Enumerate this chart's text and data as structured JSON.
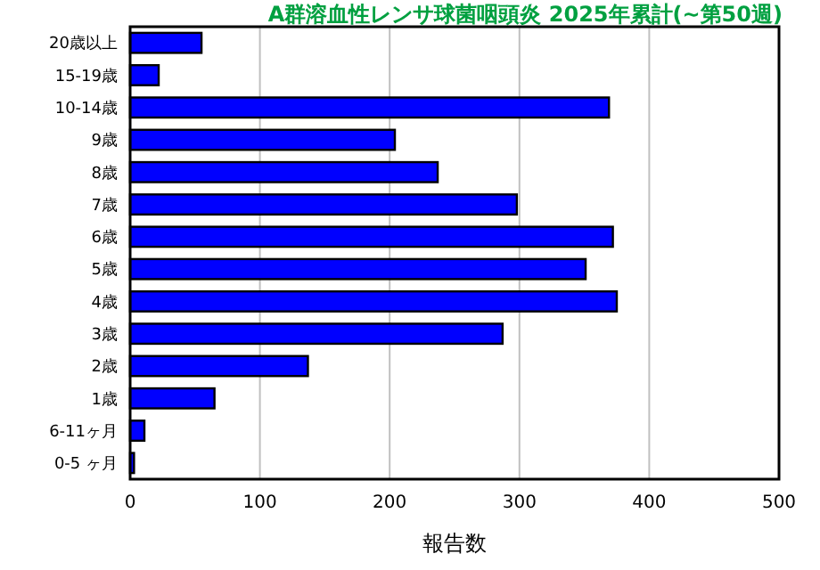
{
  "chart_data": {
    "type": "bar",
    "orientation": "horizontal",
    "title": "A群溶血性レンサ球菌咽頭炎 2025年累計(~第50週)",
    "xlabel": "報告数",
    "categories": [
      "20歳以上",
      "15-19歳",
      "10-14歳",
      "9歳",
      "8歳",
      "7歳",
      "6歳",
      "5歳",
      "4歳",
      "3歳",
      "2歳",
      "1歳",
      "6-11ヶ月",
      "0-5 ヶ月"
    ],
    "values": [
      55,
      22,
      369,
      204,
      237,
      298,
      372,
      351,
      375,
      287,
      137,
      65,
      11,
      3
    ],
    "color": "#0000ff",
    "xlim": [
      0,
      500
    ],
    "xticks": [
      0,
      100,
      200,
      300,
      400,
      500
    ],
    "grid": "x"
  }
}
